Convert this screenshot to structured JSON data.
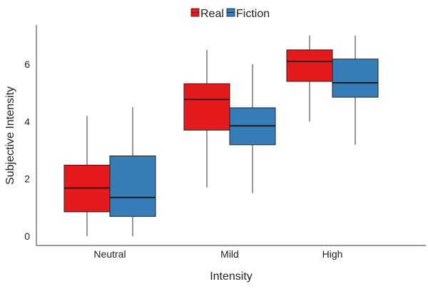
{
  "chart_data": {
    "type": "boxplot",
    "title": "",
    "xlabel": "Intensity",
    "ylabel": "Subjective Intensity",
    "categories": [
      "Neutral",
      "Mild",
      "High"
    ],
    "ylim": [
      -0.3,
      7.4
    ],
    "yticks": [
      0,
      2,
      4,
      6
    ],
    "grid": false,
    "legend_position": "top",
    "series": [
      {
        "name": "Real",
        "color": "#E41A1C",
        "boxes": [
          {
            "min": 0,
            "q1": 0.85,
            "median": 1.68,
            "q3": 2.48,
            "max": 4.2
          },
          {
            "min": 1.7,
            "q1": 3.7,
            "median": 4.77,
            "q3": 5.32,
            "max": 6.5
          },
          {
            "min": 4.0,
            "q1": 5.4,
            "median": 6.1,
            "q3": 6.5,
            "max": 7.0
          }
        ]
      },
      {
        "name": "Fiction",
        "color": "#377EB8",
        "boxes": [
          {
            "min": 0,
            "q1": 0.69,
            "median": 1.35,
            "q3": 2.8,
            "max": 4.5
          },
          {
            "min": 1.5,
            "q1": 3.19,
            "median": 3.85,
            "q3": 4.48,
            "max": 6.0
          },
          {
            "min": 3.19,
            "q1": 4.85,
            "median": 5.35,
            "q3": 6.18,
            "max": 7.0
          }
        ]
      }
    ]
  }
}
